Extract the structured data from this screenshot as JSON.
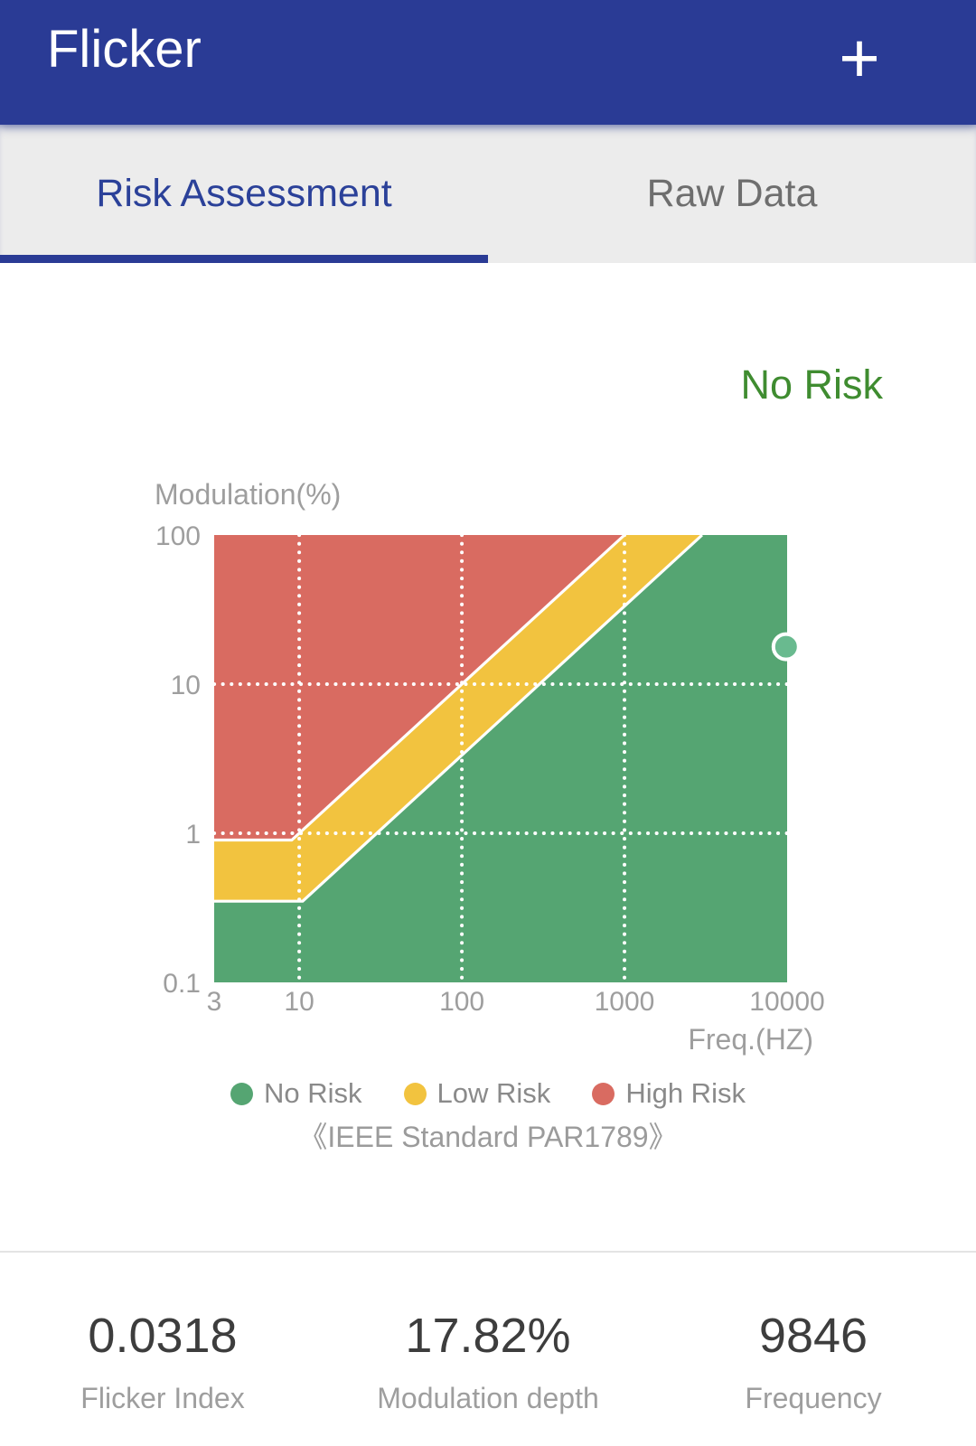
{
  "header": {
    "title": "Flicker",
    "add_button": "+"
  },
  "tabs": {
    "items": [
      {
        "label": "Risk Assessment",
        "active": true
      },
      {
        "label": "Raw Data",
        "active": false
      }
    ]
  },
  "status": {
    "label": "No Risk",
    "color": "#3F8C30"
  },
  "chart_data": {
    "type": "area",
    "title": "",
    "xlabel": "Freq.(HZ)",
    "ylabel": "Modulation(%)",
    "x_scale": "log",
    "y_scale": "log",
    "x_range": [
      3,
      10000
    ],
    "y_range": [
      0.1,
      100
    ],
    "x_ticks": [
      "3",
      "10",
      "100",
      "1000",
      "10000"
    ],
    "x_tick_values": [
      3,
      10,
      100,
      1000,
      10000
    ],
    "y_ticks": [
      "100",
      "10",
      "1",
      "0.1"
    ],
    "y_tick_values": [
      100,
      10,
      1,
      0.1
    ],
    "x_gridlines": [
      10,
      100,
      1000
    ],
    "y_gridlines": [
      10,
      1
    ],
    "grid": "white dotted",
    "zone_colors": {
      "no_risk": "#55A572",
      "low_risk": "#F2C33F",
      "high_risk": "#D96B61"
    },
    "boundaries": {
      "high_risk_line": {
        "flat_level": 0.9,
        "reaches_top_at_freq": 1000,
        "top_value": 100
      },
      "low_risk_line": {
        "flat_level": 0.35,
        "reaches_top_at_freq": 3000,
        "top_value": 100
      }
    },
    "point": {
      "freq": 9846,
      "modulation": 17.82,
      "fill": "#69BA8F",
      "stroke": "#FFFFFF"
    },
    "legend": [
      {
        "label": "No Risk",
        "color": "#55A572"
      },
      {
        "label": "Low Risk",
        "color": "#F2C33F"
      },
      {
        "label": "High Risk",
        "color": "#D96B61"
      }
    ],
    "legend_position": "bottom",
    "caption": "《IEEE Standard PAR1789》"
  },
  "stats": [
    {
      "value": "0.0318",
      "label": "Flicker Index"
    },
    {
      "value": "17.82%",
      "label": "Modulation depth"
    },
    {
      "value": "9846",
      "label": "Frequency"
    }
  ]
}
